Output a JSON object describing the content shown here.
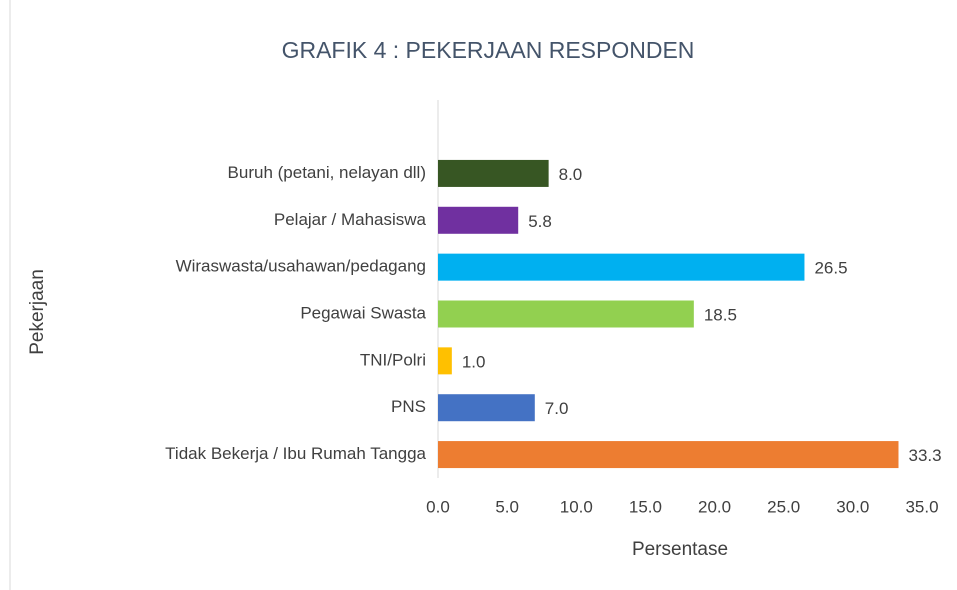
{
  "chart_data": {
    "type": "barh",
    "title": "GRAFIK 4 : PEKERJAAN RESPONDEN",
    "x_label": "Persentase",
    "y_label": "Pekerjaan",
    "categories": [
      "Buruh (petani, nelayan dll)",
      "Pelajar / Mahasiswa",
      "Wiraswasta/usahawan/pedagang",
      "Pegawai Swasta",
      "TNI/Polri",
      "PNS",
      "Tidak Bekerja / Ibu Rumah Tangga"
    ],
    "values": [
      8.0,
      5.8,
      26.5,
      18.5,
      1.0,
      7.0,
      33.3
    ],
    "value_labels": [
      "8.0",
      "5.8",
      "26.5",
      "18.5",
      "1.0",
      "7.0",
      "33.3"
    ],
    "colors": [
      "#375623",
      "#7030a0",
      "#00b0f0",
      "#92d050",
      "#ffc000",
      "#4472c4",
      "#ed7d31"
    ],
    "xlim": [
      0,
      35
    ],
    "xticks": [
      {
        "value": 0,
        "label": "0.0"
      },
      {
        "value": 5,
        "label": "5.0"
      },
      {
        "value": 10,
        "label": "10.0"
      },
      {
        "value": 15,
        "label": "15.0"
      },
      {
        "value": 20,
        "label": "20.0"
      },
      {
        "value": 25,
        "label": "25.0"
      },
      {
        "value": 30,
        "label": "30.0"
      },
      {
        "value": 35,
        "label": "35.0"
      }
    ],
    "grid": false
  }
}
